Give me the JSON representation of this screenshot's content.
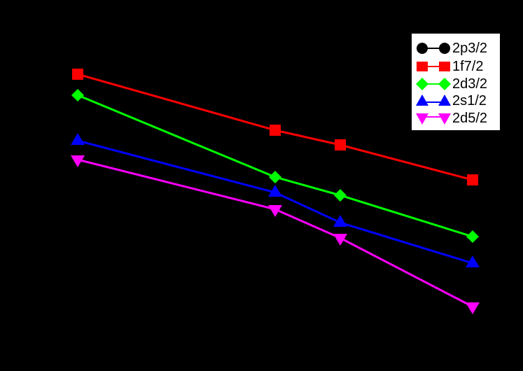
{
  "chart_data": {
    "type": "line",
    "title": "",
    "xlabel": "",
    "ylabel": "",
    "grid": false,
    "legend_position": "upper right",
    "axes_visible": false,
    "note": "Axes, ticks and tick labels are rendered in black on black background; values below are in pixel coordinates (y grows downward).",
    "x": [
      111,
      393,
      486,
      675
    ],
    "series": [
      {
        "name": "2p3/2",
        "color": "#000000",
        "marker": "circle",
        "values": [
          null,
          null,
          null,
          null
        ]
      },
      {
        "name": "1f7/2",
        "color": "#ff0000",
        "marker": "square",
        "values": [
          106,
          186,
          207,
          257
        ]
      },
      {
        "name": "2d3/2",
        "color": "#00ff00",
        "marker": "diamond",
        "values": [
          136,
          253,
          279,
          338
        ]
      },
      {
        "name": "2s1/2",
        "color": "#0000ff",
        "marker": "triangle-up",
        "values": [
          201,
          275,
          318,
          376
        ]
      },
      {
        "name": "2d5/2",
        "color": "#ff00ff",
        "marker": "triangle-down",
        "values": [
          228,
          299,
          340,
          438
        ]
      }
    ]
  },
  "legend": {
    "items": [
      {
        "label": "2p3/2",
        "color": "#000000"
      },
      {
        "label": "1f7/2",
        "color": "#ff0000"
      },
      {
        "label": "2d3/2",
        "color": "#00ff00"
      },
      {
        "label": "2s1/2",
        "color": "#0000ff"
      },
      {
        "label": "2d5/2",
        "color": "#ff00ff"
      }
    ]
  }
}
